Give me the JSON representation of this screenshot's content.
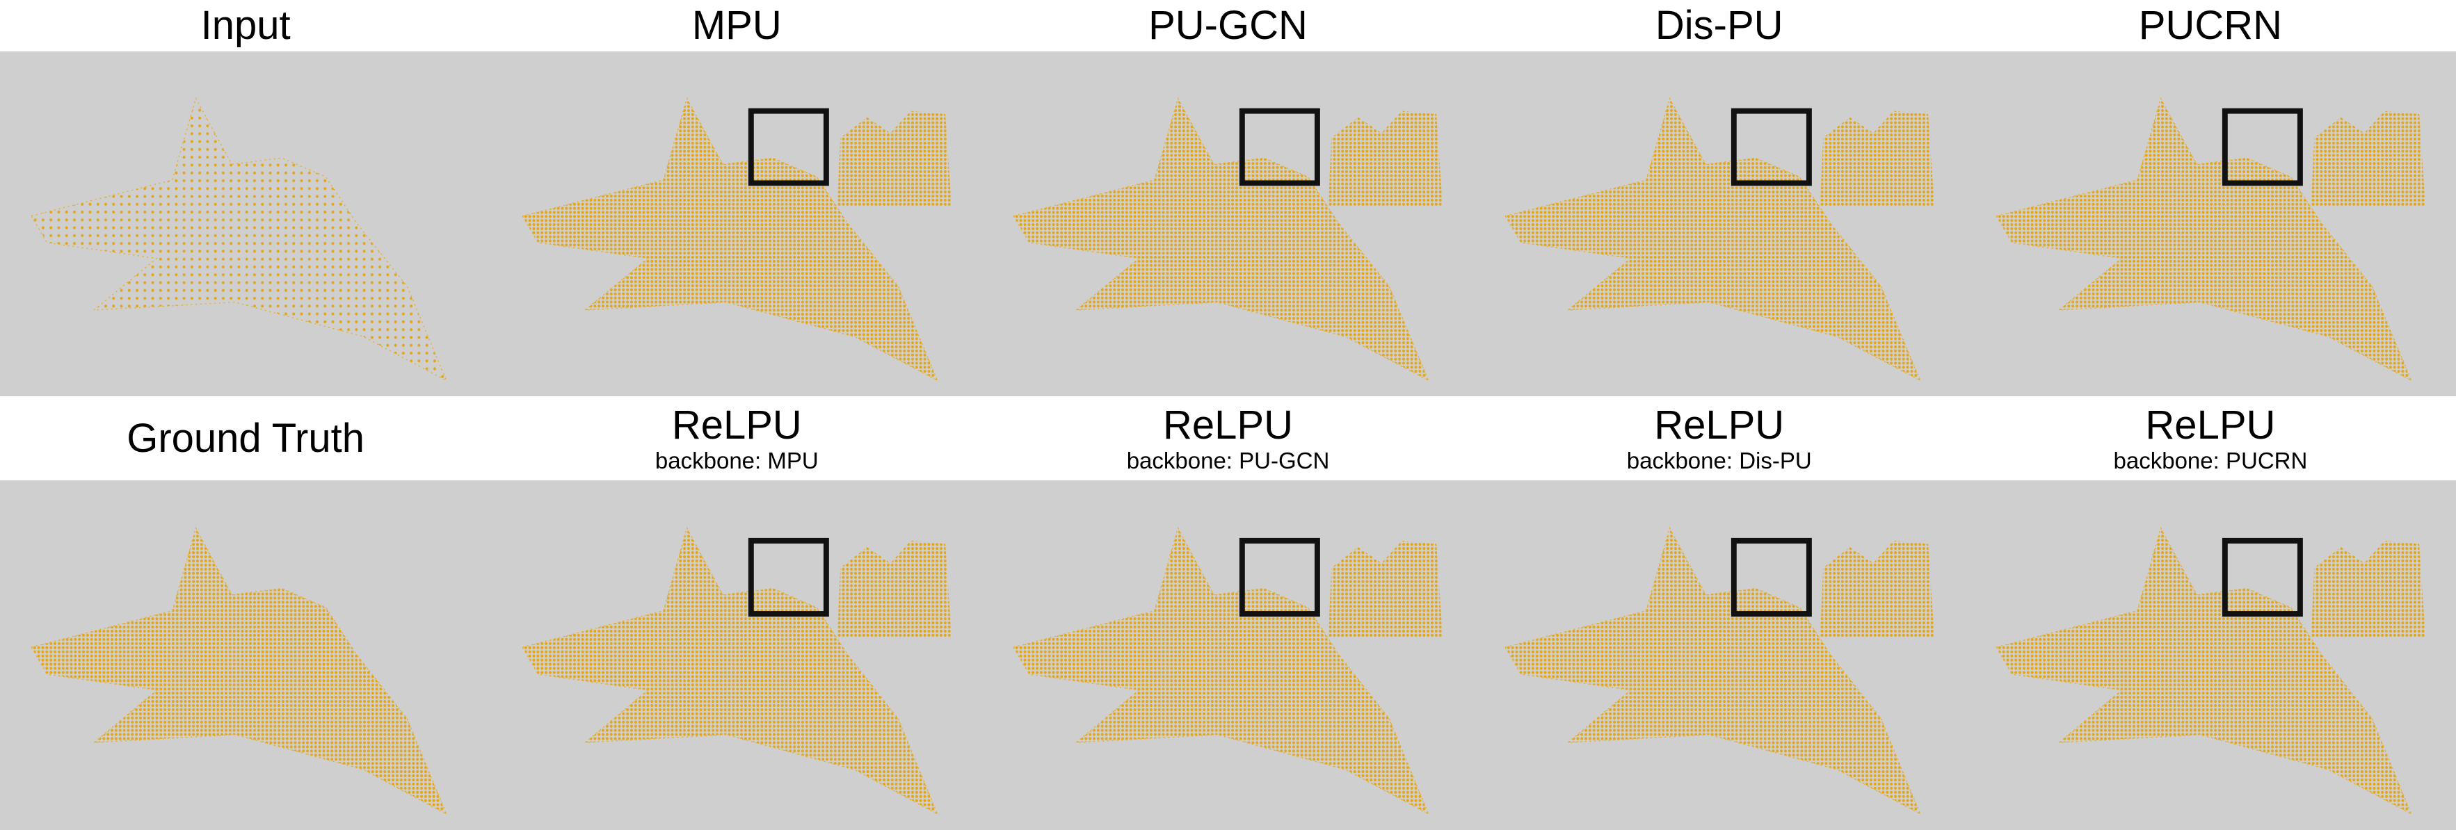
{
  "rows": [
    {
      "panels": [
        {
          "title": "Input"
        },
        {
          "title": "MPU"
        },
        {
          "title": "PU-GCN"
        },
        {
          "title": "Dis-PU"
        },
        {
          "title": "PUCRN"
        }
      ]
    },
    {
      "panels": [
        {
          "title": "Ground Truth"
        },
        {
          "title": "ReLPU",
          "subtitle": "backbone: MPU"
        },
        {
          "title": "ReLPU",
          "subtitle": "backbone: PU-GCN"
        },
        {
          "title": "ReLPU",
          "subtitle": "backbone: Dis-PU"
        },
        {
          "title": "ReLPU",
          "subtitle": "backbone: PUCRN"
        }
      ]
    }
  ]
}
